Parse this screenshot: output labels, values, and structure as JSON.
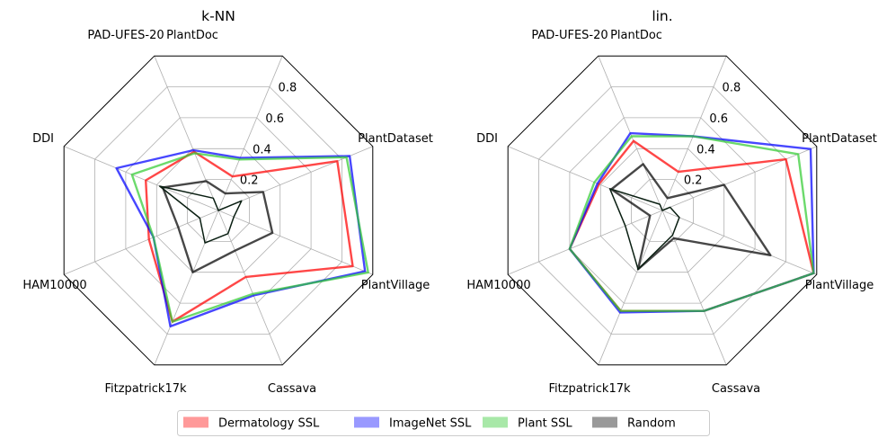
{
  "chart_data": [
    {
      "type": "radar",
      "title": "k-NN",
      "categories": [
        "PlantDoc",
        "PlantDataset",
        "PlantVillage",
        "Cassava",
        "Fitzpatrick17k",
        "HAM10000",
        "DDI",
        "PAD-UFES-20"
      ],
      "radial_ticks": [
        "0.2",
        "0.4",
        "0.6",
        "0.8"
      ],
      "rlim": [
        0,
        1
      ],
      "grid": true,
      "series": [
        {
          "name": "Dermatology SSL",
          "color": "#ff0000",
          "values": [
            0.22,
            0.77,
            0.87,
            0.43,
            0.72,
            0.45,
            0.47,
            0.38
          ]
        },
        {
          "name": "ImageNet SSL",
          "color": "#0000ff",
          "values": [
            0.34,
            0.85,
            0.95,
            0.55,
            0.75,
            0.42,
            0.66,
            0.39
          ]
        },
        {
          "name": "Plant SSL",
          "color": "#33cc33",
          "values": [
            0.33,
            0.83,
            0.97,
            0.54,
            0.72,
            0.42,
            0.56,
            0.37
          ]
        },
        {
          "name": "Random",
          "color": "#000000",
          "values": [
            0.11,
            0.29,
            0.35,
            0.26,
            0.4,
            0.26,
            0.36,
            0.19
          ]
        },
        {
          "name": "",
          "color": "#0a1f12",
          "values": [
            0.0,
            0.15,
            0.1,
            0.15,
            0.21,
            0.12,
            0.38,
            0.08
          ]
        }
      ]
    },
    {
      "type": "radar",
      "title": "lin.",
      "categories": [
        "PlantDoc",
        "PlantDataset",
        "PlantVillage",
        "Cassava",
        "Fitzpatrick17k",
        "HAM10000",
        "DDI",
        "PAD-UFES-20"
      ],
      "radial_ticks": [
        "0.2",
        "0.4",
        "0.6",
        "0.8"
      ],
      "rlim": [
        0,
        1
      ],
      "grid": true,
      "series": [
        {
          "name": "Dermatology SSL",
          "color": "#ff0000",
          "values": [
            0.25,
            0.8,
            0.98,
            0.65,
            0.65,
            0.6,
            0.41,
            0.45
          ]
        },
        {
          "name": "ImageNet SSL",
          "color": "#0000ff",
          "values": [
            0.48,
            0.96,
            0.98,
            0.65,
            0.66,
            0.6,
            0.42,
            0.5
          ]
        },
        {
          "name": "Plant SSL",
          "color": "#33cc33",
          "values": [
            0.48,
            0.88,
            0.98,
            0.65,
            0.65,
            0.6,
            0.44,
            0.48
          ]
        },
        {
          "name": "Random",
          "color": "#000000",
          "values": [
            0.08,
            0.4,
            0.7,
            0.18,
            0.38,
            0.08,
            0.33,
            0.3
          ]
        },
        {
          "name": "",
          "color": "#0a1f12",
          "values": [
            0.0,
            0.05,
            0.11,
            0.16,
            0.38,
            0.24,
            0.34,
            0.04
          ]
        }
      ]
    }
  ],
  "legend": [
    {
      "label": "Dermatology SSL",
      "color": "#ff9999"
    },
    {
      "label": "ImageNet SSL",
      "color": "#9999ff"
    },
    {
      "label": "Plant SSL",
      "color": "#a8e8a8"
    },
    {
      "label": "Random",
      "color": "#999999"
    }
  ]
}
